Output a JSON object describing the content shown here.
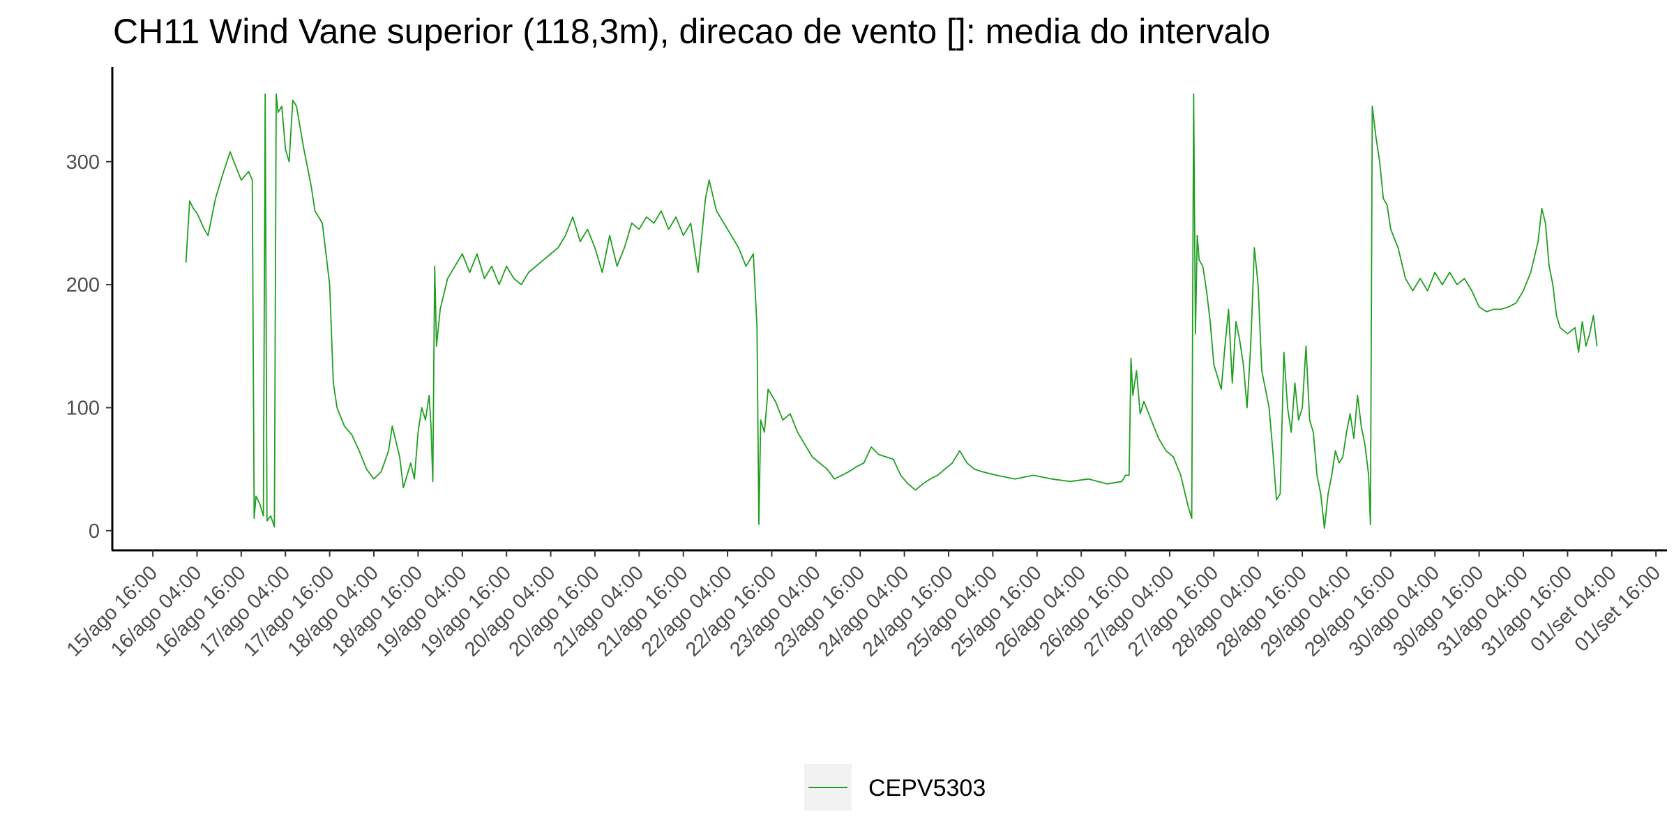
{
  "chart_data": {
    "type": "line",
    "title": "CH11 Wind Vane superior (118,3m), direcao de vento []: media do intervalo",
    "x": [
      "16/ago 01:00",
      "16/ago 02:00",
      "16/ago 03:00",
      "16/ago 04:00",
      "16/ago 06:00",
      "16/ago 07:00",
      "16/ago 09:00",
      "16/ago 11:00",
      "16/ago 13:00",
      "16/ago 14:00",
      "16/ago 16:00",
      "16/ago 18:00",
      "16/ago 19:00",
      "16/ago 19:30",
      "16/ago 20:00",
      "16/ago 21:00",
      "16/ago 22:00",
      "16/ago 22:30",
      "16/ago 23:00",
      "17/ago 00:00",
      "17/ago 01:00",
      "17/ago 01:30",
      "17/ago 02:00",
      "17/ago 03:00",
      "17/ago 04:00",
      "17/ago 05:00",
      "17/ago 06:00",
      "17/ago 07:00",
      "17/ago 09:00",
      "17/ago 11:00",
      "17/ago 12:00",
      "17/ago 14:00",
      "17/ago 15:00",
      "17/ago 16:00",
      "17/ago 17:00",
      "17/ago 18:00",
      "17/ago 20:00",
      "17/ago 22:00",
      "18/ago 00:00",
      "18/ago 02:00",
      "18/ago 04:00",
      "18/ago 06:00",
      "18/ago 08:00",
      "18/ago 09:00",
      "18/ago 11:00",
      "18/ago 12:00",
      "18/ago 13:00",
      "18/ago 14:00",
      "18/ago 15:00",
      "18/ago 16:00",
      "18/ago 17:00",
      "18/ago 18:00",
      "18/ago 19:00",
      "18/ago 19:30",
      "18/ago 20:00",
      "18/ago 20:30",
      "18/ago 21:00",
      "18/ago 22:00",
      "19/ago 00:00",
      "19/ago 02:00",
      "19/ago 04:00",
      "19/ago 06:00",
      "19/ago 08:00",
      "19/ago 10:00",
      "19/ago 12:00",
      "19/ago 14:00",
      "19/ago 16:00",
      "19/ago 18:00",
      "19/ago 20:00",
      "19/ago 22:00",
      "20/ago 00:00",
      "20/ago 02:00",
      "20/ago 04:00",
      "20/ago 06:00",
      "20/ago 08:00",
      "20/ago 10:00",
      "20/ago 12:00",
      "20/ago 14:00",
      "20/ago 16:00",
      "20/ago 18:00",
      "20/ago 20:00",
      "20/ago 22:00",
      "21/ago 00:00",
      "21/ago 02:00",
      "21/ago 04:00",
      "21/ago 06:00",
      "21/ago 08:00",
      "21/ago 10:00",
      "21/ago 12:00",
      "21/ago 14:00",
      "21/ago 16:00",
      "21/ago 18:00",
      "21/ago 20:00",
      "21/ago 22:00",
      "21/ago 23:00",
      "22/ago 01:00",
      "22/ago 03:00",
      "22/ago 05:00",
      "22/ago 07:00",
      "22/ago 09:00",
      "22/ago 11:00",
      "22/ago 12:00",
      "22/ago 12:30",
      "22/ago 13:00",
      "22/ago 14:00",
      "22/ago 15:00",
      "22/ago 17:00",
      "22/ago 19:00",
      "22/ago 21:00",
      "22/ago 23:00",
      "23/ago 01:00",
      "23/ago 03:00",
      "23/ago 05:00",
      "23/ago 07:00",
      "23/ago 09:00",
      "23/ago 11:00",
      "23/ago 13:00",
      "23/ago 15:00",
      "23/ago 17:00",
      "23/ago 19:00",
      "23/ago 21:00",
      "23/ago 23:00",
      "24/ago 01:00",
      "24/ago 03:00",
      "24/ago 05:00",
      "24/ago 07:00",
      "24/ago 09:00",
      "24/ago 11:00",
      "24/ago 13:00",
      "24/ago 15:00",
      "24/ago 17:00",
      "24/ago 19:00",
      "24/ago 21:00",
      "24/ago 23:00",
      "25/ago 01:00",
      "25/ago 05:00",
      "25/ago 10:00",
      "25/ago 15:00",
      "25/ago 20:00",
      "26/ago 01:00",
      "26/ago 06:00",
      "26/ago 11:00",
      "26/ago 15:00",
      "26/ago 16:00",
      "26/ago 17:00",
      "26/ago 17:30",
      "26/ago 18:00",
      "26/ago 19:00",
      "26/ago 20:00",
      "26/ago 21:00",
      "26/ago 23:00",
      "27/ago 01:00",
      "27/ago 03:00",
      "27/ago 05:00",
      "27/ago 07:00",
      "27/ago 09:00",
      "27/ago 10:00",
      "27/ago 10:30",
      "27/ago 11:00",
      "27/ago 11:30",
      "27/ago 12:00",
      "27/ago 13:00",
      "27/ago 14:00",
      "27/ago 15:00",
      "27/ago 16:00",
      "27/ago 17:00",
      "27/ago 18:00",
      "27/ago 19:00",
      "27/ago 20:00",
      "27/ago 21:00",
      "27/ago 22:00",
      "27/ago 23:00",
      "28/ago 00:00",
      "28/ago 01:00",
      "28/ago 02:00",
      "28/ago 03:00",
      "28/ago 04:00",
      "28/ago 05:00",
      "28/ago 06:00",
      "28/ago 07:00",
      "28/ago 08:00",
      "28/ago 09:00",
      "28/ago 10:00",
      "28/ago 11:00",
      "28/ago 12:00",
      "28/ago 13:00",
      "28/ago 14:00",
      "28/ago 15:00",
      "28/ago 16:00",
      "28/ago 17:00",
      "28/ago 18:00",
      "28/ago 19:00",
      "28/ago 20:00",
      "28/ago 21:00",
      "28/ago 22:00",
      "28/ago 23:00",
      "29/ago 00:00",
      "29/ago 01:00",
      "29/ago 02:00",
      "29/ago 03:00",
      "29/ago 04:00",
      "29/ago 05:00",
      "29/ago 06:00",
      "29/ago 07:00",
      "29/ago 08:00",
      "29/ago 09:00",
      "29/ago 10:00",
      "29/ago 10:30",
      "29/ago 11:00",
      "29/ago 12:00",
      "29/ago 13:00",
      "29/ago 14:00",
      "29/ago 15:00",
      "29/ago 16:00",
      "29/ago 18:00",
      "29/ago 20:00",
      "29/ago 22:00",
      "30/ago 00:00",
      "30/ago 02:00",
      "30/ago 04:00",
      "30/ago 06:00",
      "30/ago 08:00",
      "30/ago 10:00",
      "30/ago 12:00",
      "30/ago 14:00",
      "30/ago 16:00",
      "30/ago 18:00",
      "30/ago 20:00",
      "30/ago 22:00",
      "31/ago 00:00",
      "31/ago 02:00",
      "31/ago 04:00",
      "31/ago 06:00",
      "31/ago 08:00",
      "31/ago 09:00",
      "31/ago 10:00",
      "31/ago 11:00",
      "31/ago 12:00",
      "31/ago 13:00",
      "31/ago 14:00",
      "31/ago 16:00",
      "31/ago 18:00",
      "31/ago 19:00",
      "31/ago 20:00",
      "31/ago 21:00",
      "31/ago 22:00",
      "31/ago 23:00",
      "01/set 00:00"
    ],
    "series": [
      {
        "name": "CEPV5303",
        "color": "#1f9e1f",
        "values": [
          218,
          268,
          262,
          258,
          245,
          240,
          270,
          290,
          308,
          300,
          285,
          292,
          285,
          10,
          28,
          22,
          12,
          355,
          8,
          12,
          3,
          355,
          340,
          345,
          310,
          300,
          350,
          345,
          310,
          280,
          260,
          250,
          225,
          200,
          120,
          100,
          85,
          78,
          65,
          50,
          42,
          48,
          65,
          85,
          60,
          35,
          45,
          55,
          42,
          80,
          100,
          90,
          110,
          85,
          40,
          215,
          150,
          180,
          205,
          215,
          225,
          210,
          225,
          205,
          215,
          200,
          215,
          205,
          200,
          210,
          215,
          220,
          225,
          230,
          240,
          255,
          235,
          245,
          230,
          210,
          240,
          215,
          230,
          250,
          245,
          255,
          250,
          260,
          245,
          255,
          240,
          250,
          210,
          270,
          285,
          260,
          250,
          240,
          230,
          215,
          225,
          165,
          5,
          90,
          80,
          115,
          105,
          90,
          95,
          80,
          70,
          60,
          55,
          50,
          42,
          45,
          48,
          52,
          55,
          68,
          62,
          60,
          58,
          45,
          38,
          33,
          38,
          42,
          45,
          50,
          55,
          65,
          55,
          50,
          48,
          45,
          42,
          45,
          42,
          40,
          42,
          38,
          40,
          45,
          45,
          140,
          110,
          130,
          95,
          105,
          90,
          75,
          65,
          60,
          45,
          20,
          10,
          355,
          160,
          240,
          220,
          215,
          195,
          170,
          135,
          125,
          115,
          150,
          180,
          120,
          170,
          155,
          135,
          100,
          150,
          230,
          200,
          130,
          115,
          100,
          65,
          25,
          30,
          145,
          100,
          80,
          120,
          90,
          100,
          150,
          90,
          80,
          45,
          30,
          2,
          30,
          45,
          65,
          55,
          60,
          80,
          95,
          75,
          110,
          85,
          70,
          45,
          5,
          345,
          320,
          300,
          270,
          265,
          245,
          230,
          205,
          195,
          205,
          195,
          210,
          200,
          210,
          200,
          205,
          195,
          182,
          178,
          180,
          180,
          182,
          185,
          195,
          210,
          235,
          262,
          250,
          215,
          200,
          175,
          165,
          160,
          165,
          145,
          170,
          150,
          160,
          175,
          150
        ]
      }
    ],
    "xlim": [
      "15/ago 05:00",
      "01/set 19:00"
    ],
    "xticks": [
      "15/ago 16:00",
      "16/ago 04:00",
      "16/ago 16:00",
      "17/ago 04:00",
      "17/ago 16:00",
      "18/ago 04:00",
      "18/ago 16:00",
      "19/ago 04:00",
      "19/ago 16:00",
      "20/ago 04:00",
      "20/ago 16:00",
      "21/ago 04:00",
      "21/ago 16:00",
      "22/ago 04:00",
      "22/ago 16:00",
      "23/ago 04:00",
      "23/ago 16:00",
      "24/ago 04:00",
      "24/ago 16:00",
      "25/ago 04:00",
      "25/ago 16:00",
      "26/ago 04:00",
      "26/ago 16:00",
      "27/ago 04:00",
      "27/ago 16:00",
      "28/ago 04:00",
      "28/ago 16:00",
      "29/ago 04:00",
      "29/ago 16:00",
      "30/ago 04:00",
      "30/ago 16:00",
      "31/ago 04:00",
      "31/ago 16:00",
      "01/set 04:00",
      "01/set 16:00"
    ],
    "ylim": [
      -16,
      377
    ],
    "yticks": [
      0,
      100,
      200,
      300
    ],
    "grid": false,
    "legend": "bottom"
  }
}
